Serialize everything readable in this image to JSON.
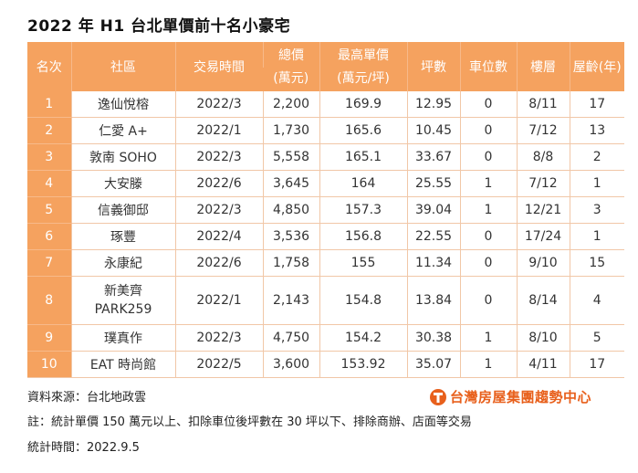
{
  "title": "2022 年 H1 台北單價前十名小豪宅",
  "headers": {
    "rank": "名次",
    "community": "社區",
    "date": "交易時間",
    "total_line1": "總價",
    "total_line2": "(萬元)",
    "unit_line1": "最高單價",
    "unit_line2": "(萬元/坪)",
    "area": "坪數",
    "parking": "車位數",
    "floor": "樓層",
    "age": "屋齡(年)"
  },
  "rows": [
    {
      "rank": "1",
      "community": "逸仙悅榕",
      "date": "2022/3",
      "total": "2,200",
      "unit": "169.9",
      "area": "12.95",
      "parking": "0",
      "floor": "8/11",
      "age": "17"
    },
    {
      "rank": "2",
      "community": "仁愛 A+",
      "date": "2022/1",
      "total": "1,730",
      "unit": "165.6",
      "area": "10.45",
      "parking": "0",
      "floor": "7/12",
      "age": "13"
    },
    {
      "rank": "3",
      "community": "敦南 SOHO",
      "date": "2022/3",
      "total": "5,558",
      "unit": "165.1",
      "area": "33.67",
      "parking": "0",
      "floor": "8/8",
      "age": "2"
    },
    {
      "rank": "4",
      "community": "大安滕",
      "date": "2022/6",
      "total": "3,645",
      "unit": "164",
      "area": "25.55",
      "parking": "1",
      "floor": "7/12",
      "age": "1"
    },
    {
      "rank": "5",
      "community": "信義御邸",
      "date": "2022/3",
      "total": "4,850",
      "unit": "157.3",
      "area": "39.04",
      "parking": "1",
      "floor": "12/21",
      "age": "3"
    },
    {
      "rank": "6",
      "community": "琢豐",
      "date": "2022/4",
      "total": "3,536",
      "unit": "156.8",
      "area": "22.55",
      "parking": "0",
      "floor": "17/24",
      "age": "1"
    },
    {
      "rank": "7",
      "community": "永康紀",
      "date": "2022/6",
      "total": "1,758",
      "unit": "155",
      "area": "11.34",
      "parking": "0",
      "floor": "9/10",
      "age": "15"
    },
    {
      "rank": "8",
      "community_line1": "新美齊",
      "community_line2": "PARK259",
      "date": "2022/1",
      "total": "2,143",
      "unit": "154.8",
      "area": "13.84",
      "parking": "0",
      "floor": "8/14",
      "age": "4"
    },
    {
      "rank": "9",
      "community": "璞真作",
      "date": "2022/3",
      "total": "4,750",
      "unit": "154.2",
      "area": "30.38",
      "parking": "1",
      "floor": "8/10",
      "age": "5"
    },
    {
      "rank": "10",
      "community": "EAT 時尚館",
      "date": "2022/5",
      "total": "3,600",
      "unit": "153.92",
      "area": "35.07",
      "parking": "1",
      "floor": "4/11",
      "age": "17"
    }
  ],
  "footer": {
    "source": "資料來源：台北地政雲",
    "note": "註：統計單價 150 萬元以上、扣除車位後坪數在 30 坪以下、排除商辦、店面等交易",
    "period": "統計時間：2022.9.5"
  },
  "logo": {
    "text": "台灣房屋集團趨勢中心",
    "icon": "taiwan-realty-logo-icon",
    "color": "#e8601c"
  },
  "colors": {
    "header_bg": "#f5a25f",
    "grid": "#f1c7a7"
  }
}
